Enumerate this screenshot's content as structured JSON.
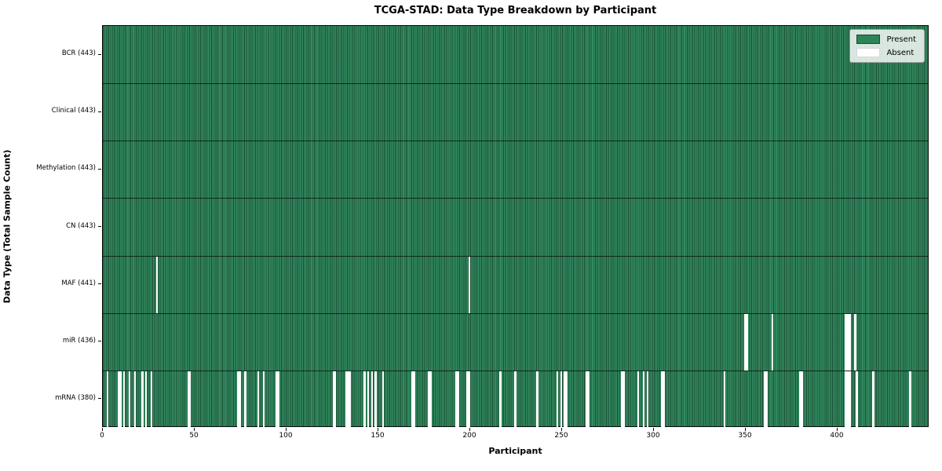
{
  "header": {
    "title": "TCGA-STAD: Data Type Breakdown by Participant"
  },
  "colors": {
    "present": "#2e8457",
    "present_stripe_edge": "#1b4d33",
    "absent": "#ffffff",
    "spine": "#0a0a0a"
  },
  "chart_data": {
    "type": "heatmap",
    "title": "TCGA-STAD: Data Type Breakdown by Participant",
    "xlabel": "Participant",
    "ylabel": "Data Type (Total Sample Count)",
    "x_range": [
      0,
      450
    ],
    "x_ticks": [
      0,
      50,
      100,
      150,
      200,
      250,
      300,
      350,
      400
    ],
    "n_participants": 443,
    "grid": "row-dividers-only",
    "legend_position": "upper right",
    "legend_items": [
      {
        "label": "Present",
        "color": "#2e8457"
      },
      {
        "label": "Absent",
        "color": "#ffffff"
      }
    ],
    "rows": [
      {
        "name": "BCR",
        "label": "BCR (443)",
        "present_count": 443,
        "absent_participants": []
      },
      {
        "name": "Clinical",
        "label": "Clinical (443)",
        "present_count": 443,
        "absent_participants": []
      },
      {
        "name": "Methylation",
        "label": "Methylation (443)",
        "present_count": 443,
        "absent_participants": []
      },
      {
        "name": "CN",
        "label": "CN (443)",
        "present_count": 443,
        "absent_participants": []
      },
      {
        "name": "MAF",
        "label": "MAF (441)",
        "present_count": 441,
        "absent_participants": [
          29,
          199
        ]
      },
      {
        "name": "miR",
        "label": "miR (436)",
        "present_count": 436,
        "absent_participants": [
          349,
          350,
          364,
          404,
          405,
          406,
          409
        ]
      },
      {
        "name": "mRNA",
        "label": "mRNA (380)",
        "present_count": 380,
        "absent_participants": [
          2,
          8,
          9,
          11,
          14,
          17,
          21,
          23,
          26,
          46,
          47,
          73,
          74,
          77,
          84,
          87,
          94,
          95,
          125,
          126,
          132,
          133,
          134,
          142,
          144,
          146,
          148,
          152,
          168,
          169,
          177,
          178,
          192,
          193,
          198,
          199,
          216,
          224,
          236,
          247,
          249,
          251,
          252,
          263,
          264,
          282,
          283,
          291,
          294,
          296,
          304,
          305,
          338,
          360,
          361,
          379,
          380,
          404,
          405,
          406,
          410,
          419,
          439
        ]
      }
    ]
  }
}
